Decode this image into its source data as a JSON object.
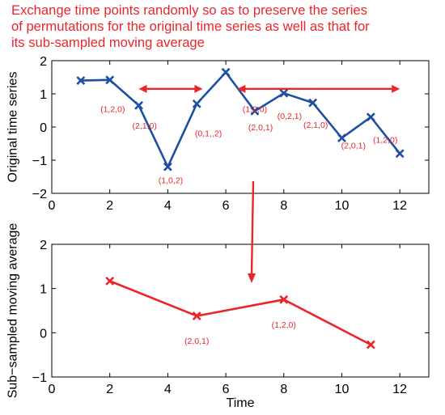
{
  "caption_lines": [
    "Exchange time points randomly so as to preserve the series",
    "of permutations for the original time series as well as that for",
    "its sub-sampled moving average"
  ],
  "colors": {
    "top_series": "#1f4fa0",
    "bottom_series": "#e8262b",
    "annotation": "#e8262b",
    "axis": "#000000"
  },
  "chart_data": [
    {
      "type": "line",
      "title": "",
      "xlabel": "",
      "ylabel": "Original time series",
      "xlim": [
        0,
        13
      ],
      "ylim": [
        -2,
        2
      ],
      "xticks": [
        0,
        2,
        4,
        6,
        8,
        10,
        12
      ],
      "yticks": [
        -2,
        -1,
        0,
        1,
        2
      ],
      "grid": false,
      "marker": "x",
      "series": [
        {
          "x": [
            1,
            2,
            3,
            4,
            5,
            6,
            7,
            8,
            9,
            10,
            11,
            12
          ],
          "y": [
            1.4,
            1.42,
            0.65,
            -1.2,
            0.7,
            1.65,
            0.48,
            1.02,
            0.73,
            -0.33,
            0.3,
            -0.8
          ]
        }
      ],
      "point_labels": [
        {
          "text": "(1,2,0)",
          "x": 2.1,
          "y": 0.45
        },
        {
          "text": "(2,1,0)",
          "x": 3.2,
          "y": -0.05
        },
        {
          "text": "(1,0,2)",
          "x": 4.1,
          "y": -1.7
        },
        {
          "text": "(0,1,,2)",
          "x": 5.4,
          "y": -0.28
        },
        {
          "text": "(1,2,0)",
          "x": 7.0,
          "y": 0.45
        },
        {
          "text": "(2,0,1)",
          "x": 7.2,
          "y": -0.1
        },
        {
          "text": "(0,2,1)",
          "x": 8.2,
          "y": 0.25
        },
        {
          "text": "(2,1,0)",
          "x": 9.1,
          "y": -0.02
        },
        {
          "text": "(2,0,1)",
          "x": 10.4,
          "y": -0.65
        },
        {
          "text": "(1,2,0)",
          "x": 11.5,
          "y": -0.47
        }
      ],
      "arrows": [
        {
          "kind": "double",
          "x1": 3.0,
          "x2": 5.2,
          "y": 1.15
        },
        {
          "kind": "double",
          "x1": 6.4,
          "x2": 12.0,
          "y": 1.15
        }
      ]
    },
    {
      "type": "line",
      "title": "",
      "xlabel": "Time",
      "ylabel": "Sub−sampled moving average",
      "xlim": [
        0,
        13
      ],
      "ylim": [
        -1,
        2
      ],
      "xticks": [
        0,
        2,
        4,
        6,
        8,
        10,
        12
      ],
      "yticks": [
        -1,
        0,
        1,
        2
      ],
      "grid": false,
      "marker": "x",
      "series": [
        {
          "x": [
            2,
            5,
            8,
            11
          ],
          "y": [
            1.17,
            0.38,
            0.75,
            -0.27
          ]
        }
      ],
      "point_labels": [
        {
          "text": "(2,0,1)",
          "x": 5.0,
          "y": -0.25
        },
        {
          "text": "(1,2,0)",
          "x": 8.0,
          "y": 0.12
        }
      ]
    }
  ]
}
